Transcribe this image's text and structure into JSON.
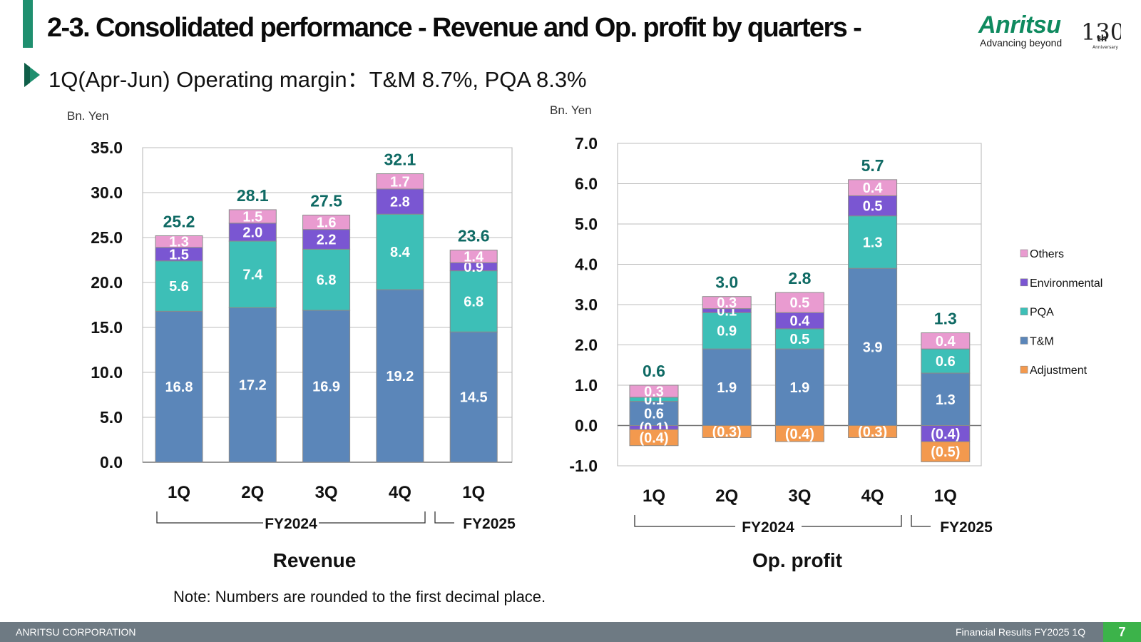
{
  "header": {
    "title": "2-3. Consolidated performance - Revenue and Op. profit by quarters -",
    "subtitle": "1Q(Apr-Jun) Operating margin：T&M 8.7%, PQA  8.3%",
    "logo_word": "Anritsu",
    "logo_tagline": "Advancing beyond",
    "anniversary_number": "130",
    "anniversary_suffix": "th",
    "anniversary_label": "Anniversary"
  },
  "note": "Note: Numbers are rounded to the first decimal place.",
  "footer": {
    "company": "ANRITSU CORPORATION",
    "doc_title": "Financial Results FY2025 1Q",
    "page_number": "7"
  },
  "colors": {
    "title_bar": "#1f8f6f",
    "tm": "#5b86b9",
    "pqa": "#3dbfb7",
    "environmental": "#7a56d2",
    "others": "#e99bd0",
    "adjustment": "#f3994e",
    "total_label": "#0f6a64",
    "footer": "#6e7a83",
    "page_box": "#3cb34a"
  },
  "legend": {
    "others": "Others",
    "environmental": "Environmental",
    "pqa": "PQA",
    "tm": "T&M",
    "adjustment": "Adjustment"
  },
  "chart_data": [
    {
      "type": "bar",
      "stacked": true,
      "title": "Revenue",
      "unit_label": "Bn. Yen",
      "ylim": [
        0,
        35
      ],
      "yticks": [
        "0.0",
        "5.0",
        "10.0",
        "15.0",
        "20.0",
        "25.0",
        "30.0",
        "35.0"
      ],
      "categories": [
        "1Q",
        "2Q",
        "3Q",
        "4Q",
        "1Q"
      ],
      "fiscal_groups": [
        {
          "label": "FY2024",
          "categories": [
            0,
            1,
            2,
            3
          ]
        },
        {
          "label": "FY2025",
          "categories": [
            4
          ]
        }
      ],
      "series": [
        {
          "name": "T&M",
          "key": "tm",
          "values": [
            16.8,
            17.2,
            16.9,
            19.2,
            14.5
          ],
          "labels": [
            "16.8",
            "17.2",
            "16.9",
            "19.2",
            "14.5"
          ]
        },
        {
          "name": "PQA",
          "key": "pqa",
          "values": [
            5.6,
            7.4,
            6.8,
            8.4,
            6.8
          ],
          "labels": [
            "5.6",
            "7.4",
            "6.8",
            "8.4",
            "6.8"
          ]
        },
        {
          "name": "Environmental",
          "key": "environmental",
          "values": [
            1.5,
            2.0,
            2.2,
            2.8,
            0.9
          ],
          "labels": [
            "1.5",
            "2.0",
            "2.2",
            "2.8",
            "0.9"
          ]
        },
        {
          "name": "Others",
          "key": "others",
          "values": [
            1.3,
            1.5,
            1.6,
            1.7,
            1.4
          ],
          "labels": [
            "1.3",
            "1.5",
            "1.6",
            "1.7",
            "1.4"
          ]
        }
      ],
      "totals": [
        25.2,
        28.1,
        27.5,
        32.1,
        23.6
      ],
      "total_labels": [
        "25.2",
        "28.1",
        "27.5",
        "32.1",
        "23.6"
      ]
    },
    {
      "type": "bar",
      "stacked": true,
      "title": "Op. profit",
      "unit_label": "Bn. Yen",
      "ylim": [
        -1,
        7
      ],
      "yticks": [
        "-1.0",
        "0.0",
        "1.0",
        "2.0",
        "3.0",
        "4.0",
        "5.0",
        "6.0",
        "7.0"
      ],
      "categories": [
        "1Q",
        "2Q",
        "3Q",
        "4Q",
        "1Q"
      ],
      "fiscal_groups": [
        {
          "label": "FY2024",
          "categories": [
            0,
            1,
            2,
            3
          ]
        },
        {
          "label": "FY2025",
          "categories": [
            4
          ]
        }
      ],
      "series": [
        {
          "name": "T&M",
          "key": "tm",
          "values": [
            0.6,
            1.9,
            1.9,
            3.9,
            1.3
          ],
          "labels": [
            "0.6",
            "1.9",
            "1.9",
            "3.9",
            "1.3"
          ]
        },
        {
          "name": "PQA",
          "key": "pqa",
          "values": [
            0.1,
            0.9,
            0.5,
            1.3,
            0.6
          ],
          "labels": [
            "0.1",
            "0.9",
            "0.5",
            "1.3",
            "0.6"
          ]
        },
        {
          "name": "Environmental",
          "key": "environmental",
          "values": [
            -0.1,
            0.1,
            0.4,
            0.5,
            -0.4
          ],
          "labels": [
            "(0.1)",
            "0.1",
            "0.4",
            "0.5",
            "(0.4)"
          ]
        },
        {
          "name": "Others",
          "key": "others",
          "values": [
            0.3,
            0.3,
            0.5,
            0.4,
            0.4
          ],
          "labels": [
            "0.3",
            "0.3",
            "0.5",
            "0.4",
            "0.4"
          ]
        },
        {
          "name": "Adjustment",
          "key": "adjustment",
          "values": [
            -0.4,
            -0.3,
            -0.4,
            -0.3,
            -0.5
          ],
          "labels": [
            "(0.4)",
            "(0.3)",
            "(0.4)",
            "(0.3)",
            "(0.5)"
          ]
        }
      ],
      "totals": [
        0.6,
        3.0,
        2.8,
        5.7,
        1.3
      ],
      "total_labels": [
        "0.6",
        "3.0",
        "2.8",
        "5.7",
        "1.3"
      ]
    }
  ]
}
